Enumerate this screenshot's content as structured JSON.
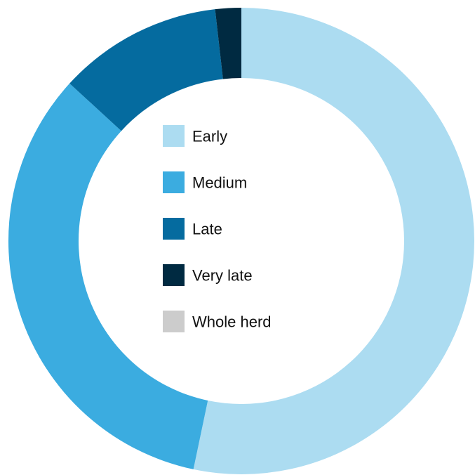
{
  "chart_data": {
    "type": "pie",
    "variant": "donut",
    "categories": [
      "Early",
      "Medium",
      "Late",
      "Very late",
      "Whole herd"
    ],
    "values": [
      53.3,
      33.5,
      11.4,
      1.8,
      0
    ],
    "colors": [
      "#acdcf1",
      "#3bace0",
      "#056b9f",
      "#002a41",
      "#cccccc"
    ],
    "legend": {
      "placement": "center",
      "items": [
        {
          "label": "Early",
          "color": "#acdcf1"
        },
        {
          "label": "Medium",
          "color": "#3bace0"
        },
        {
          "label": "Late",
          "color": "#056b9f"
        },
        {
          "label": "Very late",
          "color": "#002a41"
        },
        {
          "label": "Whole herd",
          "color": "#cccccc"
        }
      ]
    }
  }
}
